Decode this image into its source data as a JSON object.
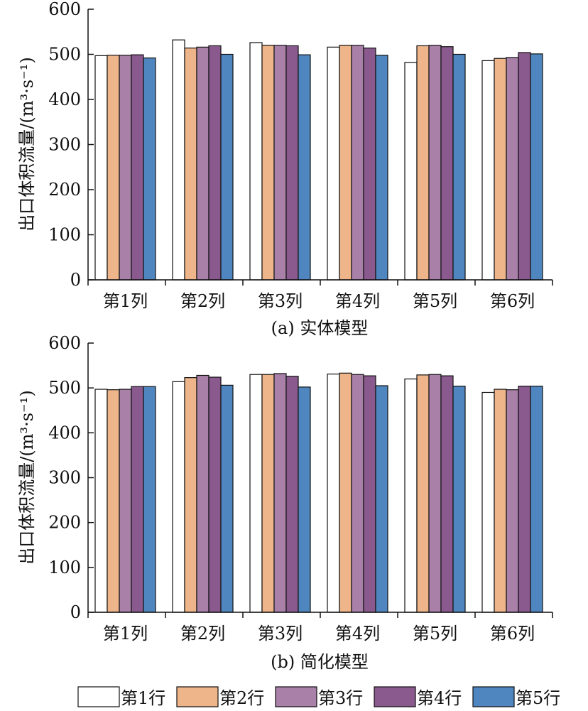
{
  "legend": [
    {
      "label": "第1行",
      "color": "#ffffff"
    },
    {
      "label": "第2行",
      "color": "#eeb58a"
    },
    {
      "label": "第3行",
      "color": "#a880a8"
    },
    {
      "label": "第4行",
      "color": "#8a5a8e"
    },
    {
      "label": "第5行",
      "color": "#4f86bf"
    }
  ],
  "chart_data": [
    {
      "type": "bar",
      "caption": "(a) 实体模型",
      "ylabel": "出口体积流量/(m³·s⁻¹)",
      "ylim": [
        0,
        600
      ],
      "yticks": [
        0,
        100,
        200,
        300,
        400,
        500,
        600
      ],
      "categories": [
        "第1列",
        "第2列",
        "第3列",
        "第4列",
        "第5列",
        "第6列"
      ],
      "series": [
        {
          "name": "第1行",
          "values": [
            497,
            532,
            526,
            516,
            482,
            486
          ]
        },
        {
          "name": "第2行",
          "values": [
            498,
            514,
            520,
            520,
            519,
            491
          ]
        },
        {
          "name": "第3行",
          "values": [
            498,
            516,
            520,
            520,
            520,
            493
          ]
        },
        {
          "name": "第4行",
          "values": [
            499,
            519,
            519,
            514,
            517,
            504
          ]
        },
        {
          "name": "第5行",
          "values": [
            492,
            500,
            499,
            498,
            500,
            501
          ]
        }
      ]
    },
    {
      "type": "bar",
      "caption": "(b) 简化模型",
      "ylabel": "出口体积流量/(m³·s⁻¹)",
      "ylim": [
        0,
        600
      ],
      "yticks": [
        0,
        100,
        200,
        300,
        400,
        500,
        600
      ],
      "categories": [
        "第1列",
        "第2列",
        "第3列",
        "第4列",
        "第5列",
        "第6列"
      ],
      "series": [
        {
          "name": "第1行",
          "values": [
            497,
            514,
            530,
            531,
            520,
            490
          ]
        },
        {
          "name": "第2行",
          "values": [
            496,
            523,
            530,
            533,
            529,
            497
          ]
        },
        {
          "name": "第3行",
          "values": [
            497,
            528,
            532,
            530,
            530,
            496
          ]
        },
        {
          "name": "第4行",
          "values": [
            503,
            524,
            526,
            527,
            527,
            504
          ]
        },
        {
          "name": "第5行",
          "values": [
            503,
            506,
            502,
            505,
            504,
            504
          ]
        }
      ]
    }
  ]
}
